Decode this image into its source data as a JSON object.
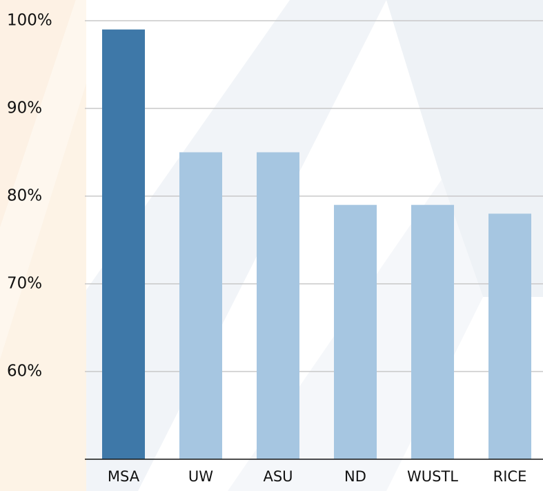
{
  "chart_data": {
    "type": "bar",
    "categories": [
      "MSA",
      "UW",
      "ASU",
      "ND",
      "WUSTL",
      "RICE"
    ],
    "values": [
      99,
      85,
      85,
      79,
      79,
      78
    ],
    "colors": [
      "#3e78a8",
      "#a6c6e1",
      "#a6c6e1",
      "#a6c6e1",
      "#a6c6e1",
      "#a6c6e1"
    ],
    "ylim": [
      50,
      100
    ],
    "yticks": [
      {
        "value": 60,
        "label": "60%"
      },
      {
        "value": 70,
        "label": "70%"
      },
      {
        "value": 80,
        "label": "80%"
      },
      {
        "value": 90,
        "label": "90%"
      },
      {
        "value": 100,
        "label": "100%"
      }
    ],
    "grid": true
  }
}
